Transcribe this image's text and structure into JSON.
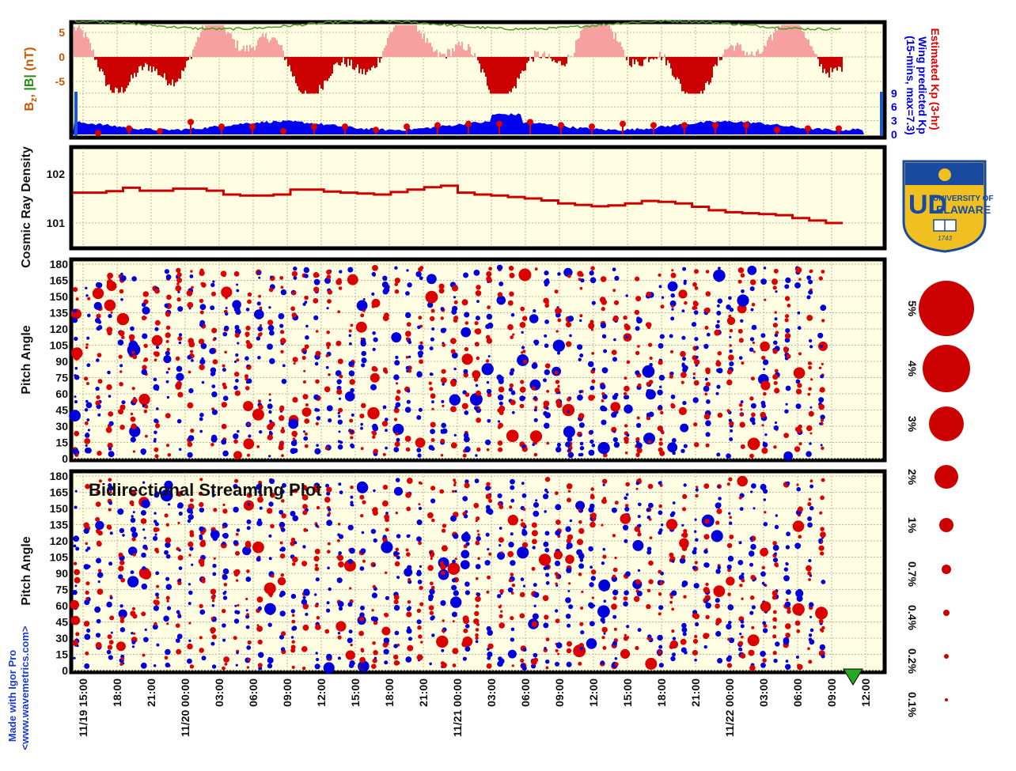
{
  "chart_data": [
    {
      "type": "area",
      "panel": "magnetic-field",
      "ylabel_parts": [
        "B",
        "z",
        ", ",
        "|B|",
        " (nT)"
      ],
      "ylim": [
        -8,
        8
      ],
      "yticks": [
        5,
        0,
        -5
      ],
      "series": [
        {
          "name": "Bz",
          "color_pos": "#f6a0a0",
          "color_neg": "#cc0000"
        },
        {
          "name": "|B|",
          "color": "#4a9a20",
          "level": 7
        }
      ],
      "grid": true
    },
    {
      "type": "bar",
      "panel": "kp-index",
      "right_label_1": "Estimated Kp (3-hr)",
      "right_label_2": "Wing predicted Kp",
      "right_label_3": "(15-mins, max=7.3)",
      "ylim": [
        0,
        9
      ],
      "yticks": [
        9,
        6,
        3,
        0
      ],
      "estimated_kp_color": "#dd0000",
      "predicted_kp_color": "#0000ee",
      "estimated_kp_values": [
        0.3,
        1.3,
        0.7,
        2.7,
        1.7,
        1.7,
        0.7,
        1.7,
        1.7,
        1.0,
        1.7,
        2.0,
        2.3,
        2.3,
        2.7,
        2.0,
        1.7,
        2.3,
        2.0,
        2.0,
        2.0,
        2.0,
        1.0,
        1.3,
        1.3
      ],
      "grid": true
    },
    {
      "type": "line",
      "panel": "cosmic-ray",
      "ylabel": "Cosmic Ray Density",
      "ylim": [
        100.7,
        102.4
      ],
      "yticks": [
        102,
        101
      ],
      "color": "#cc0000",
      "values": [
        101.62,
        101.62,
        101.65,
        101.72,
        101.66,
        101.66,
        101.7,
        101.7,
        101.66,
        101.58,
        101.56,
        101.56,
        101.58,
        101.68,
        101.68,
        101.64,
        101.62,
        101.6,
        101.58,
        101.63,
        101.68,
        101.73,
        101.76,
        101.62,
        101.58,
        101.56,
        101.53,
        101.5,
        101.46,
        101.4,
        101.37,
        101.34,
        101.36,
        101.4,
        101.45,
        101.43,
        101.4,
        101.33,
        101.26,
        101.22,
        101.2,
        101.18,
        101.16,
        101.1,
        101.05,
        101.0,
        101.0
      ]
    },
    {
      "type": "scatter",
      "panel": "pitch-angle-1",
      "ylabel": "Pitch Angle",
      "ylim": [
        0,
        180
      ],
      "yticks": [
        180,
        165,
        150,
        135,
        120,
        105,
        90,
        75,
        60,
        45,
        30,
        15,
        0
      ],
      "colors": [
        "#dd0000",
        "#0000dd"
      ]
    },
    {
      "type": "scatter",
      "panel": "pitch-angle-2",
      "title": "Bidirectional Streaming Plot",
      "ylabel": "Pitch Angle",
      "ylim": [
        0,
        180
      ],
      "yticks": [
        180,
        165,
        150,
        135,
        120,
        105,
        90,
        75,
        60,
        45,
        30,
        15,
        0
      ],
      "colors": [
        "#dd0000",
        "#0000dd"
      ]
    }
  ],
  "time_axis": {
    "labels": [
      "11/19 15:00",
      "18:00",
      "21:00",
      "11/20 00:00",
      "03:00",
      "06:00",
      "09:00",
      "12:00",
      "15:00",
      "18:00",
      "21:00",
      "11/21 00:00",
      "03:00",
      "06:00",
      "09:00",
      "12:00",
      "15:00",
      "18:00",
      "21:00",
      "11/22 00:00",
      "03:00",
      "06:00",
      "09:00",
      "12:00"
    ]
  },
  "legend": {
    "items": [
      "5%",
      "4%",
      "3%",
      "2%",
      "1%",
      "0.7%",
      "0.4%",
      "0.2%",
      "0.1%"
    ],
    "color": "#cc0000"
  },
  "logo": {
    "text_top": "UNIVERSITY OF",
    "text_main": "ELAWARE",
    "year": "1743",
    "colors": {
      "blue": "#1a4aa0",
      "gold": "#f0c020"
    }
  },
  "credit": {
    "line1": "Made with Igor Pro",
    "line2": "<www.wavemetrics.com>",
    "color": "#1a3acc"
  },
  "colors": {
    "plot_bg": "#fffee2",
    "frame": "#000000",
    "gridline": "#b8b8a0"
  }
}
